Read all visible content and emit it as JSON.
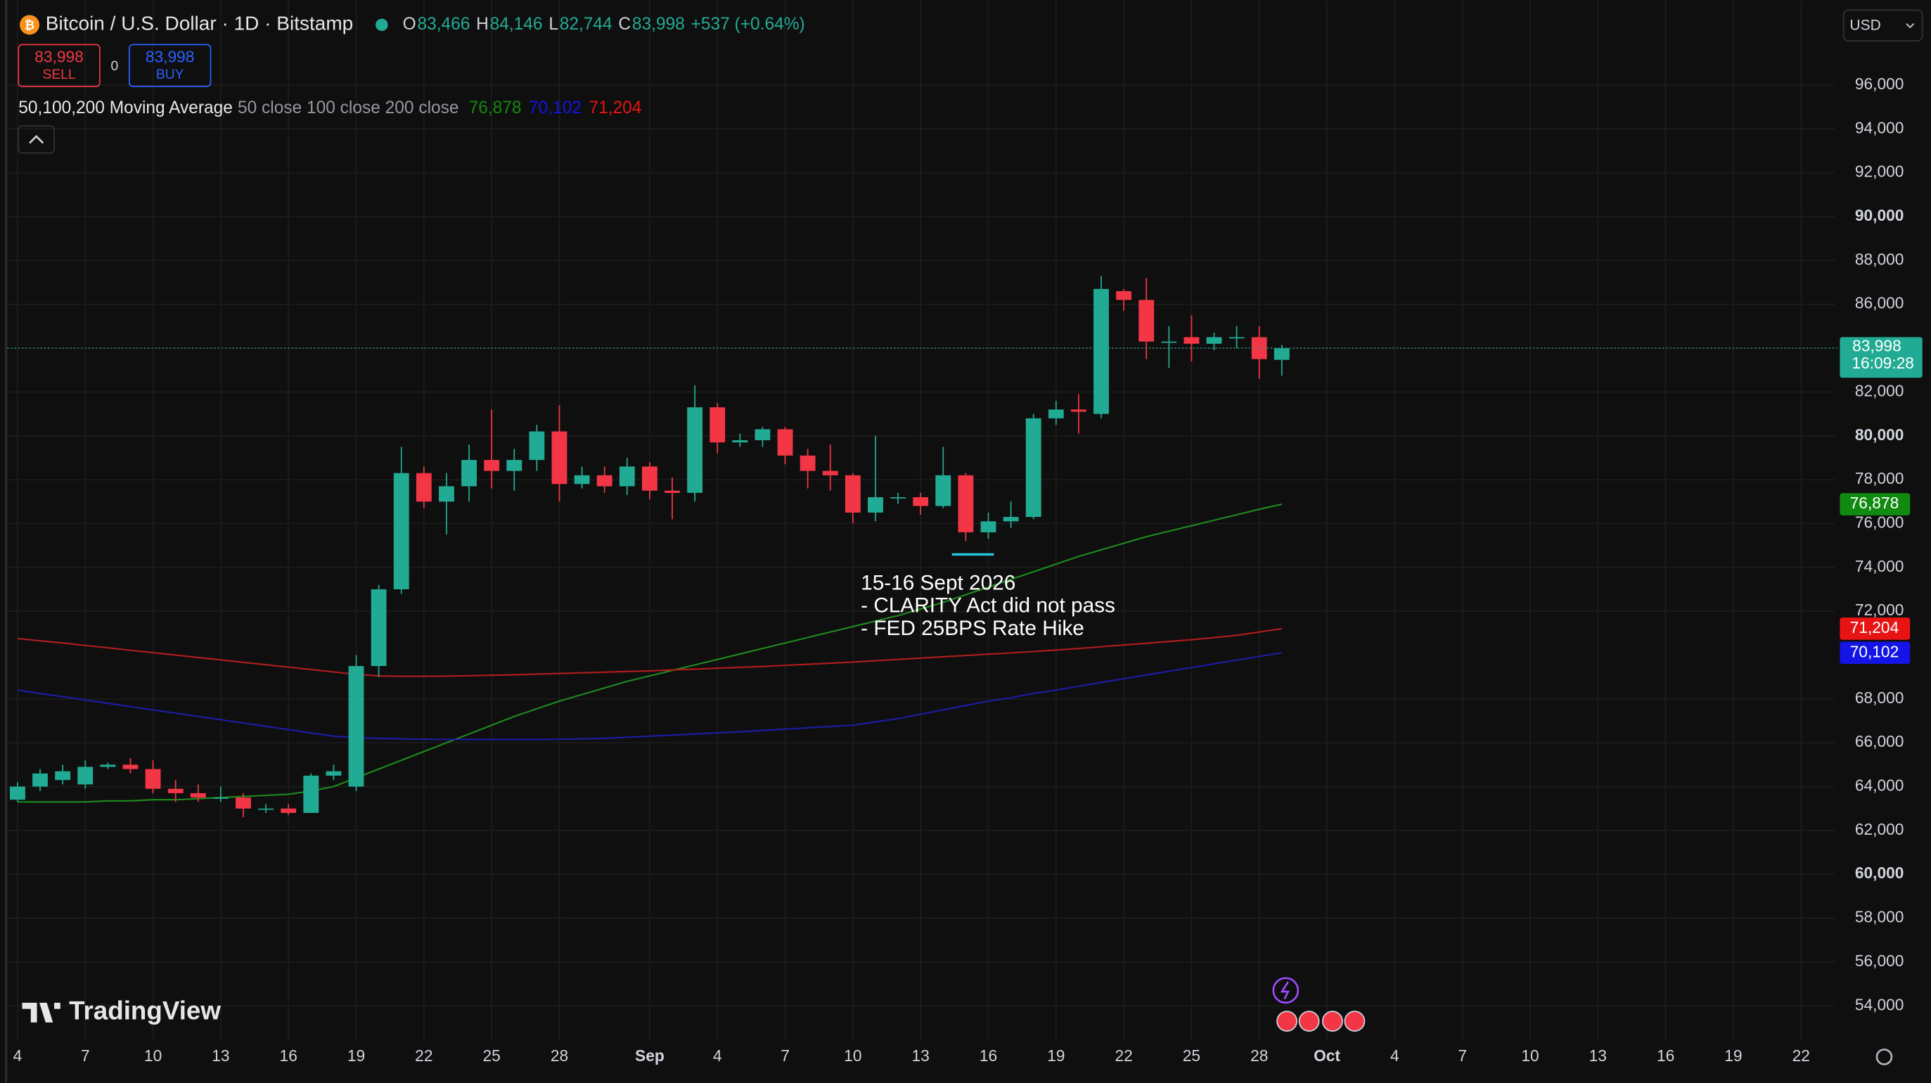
{
  "header": {
    "symbol": "Bitcoin / U.S. Dollar · 1D · Bitstamp",
    "ohlc": [
      {
        "key": "O",
        "value": "83,466"
      },
      {
        "key": "H",
        "value": "84,146"
      },
      {
        "key": "L",
        "value": "82,744"
      },
      {
        "key": "C",
        "value": "83,998"
      }
    ],
    "change": "+537 (+0.64%)"
  },
  "trade": {
    "sell_price": "83,998",
    "sell": "SELL",
    "spread": "0",
    "buy_price": "83,998",
    "buy": "BUY"
  },
  "indicator": {
    "name": "50,100,200 Moving Average",
    "params": "50 close 100 close 200 close",
    "values": [
      "76,878",
      "70,102",
      "71,204"
    ]
  },
  "currency": "USD",
  "countdown": "16:09:28",
  "logo": "TradingView",
  "chart_data": {
    "type": "candlestick",
    "up_color": "#22ab94",
    "down_color": "#f23645",
    "open": [
      63400,
      64000,
      64300,
      64100,
      64900,
      65000,
      64800,
      63900,
      63700,
      63500,
      63500,
      63000,
      63000,
      62800,
      64500,
      64000,
      69500,
      73000,
      78300,
      77000,
      77700,
      78900,
      78400,
      78900,
      80200,
      77800,
      78200,
      77700,
      78600,
      77500,
      77400,
      81300,
      79700,
      79800,
      80300,
      79100,
      78400,
      78200,
      76500,
      77200,
      77200,
      76800,
      78200,
      75600,
      76100,
      76300,
      80800,
      81200,
      81000,
      86600,
      86200,
      84300,
      84500,
      84200,
      84500,
      84500,
      83466
    ],
    "high": [
      64200,
      64800,
      65000,
      65200,
      65100,
      65300,
      65200,
      64300,
      64100,
      64000,
      63700,
      63200,
      63200,
      64600,
      65000,
      70000,
      73200,
      79500,
      78600,
      78300,
      79600,
      81200,
      79400,
      80500,
      81400,
      78600,
      78600,
      79000,
      78800,
      78100,
      82300,
      81500,
      80100,
      80400,
      80400,
      79400,
      79600,
      78300,
      80000,
      77400,
      77400,
      79500,
      78300,
      76500,
      77000,
      81000,
      81600,
      81900,
      87300,
      86700,
      87200,
      85000,
      85500,
      84700,
      85000,
      85000,
      84146
    ],
    "low": [
      63300,
      63800,
      64100,
      63900,
      64800,
      64600,
      63700,
      63300,
      63300,
      63300,
      62600,
      62800,
      62700,
      62800,
      64300,
      63800,
      69000,
      72800,
      76700,
      75500,
      77000,
      77600,
      77500,
      78400,
      77000,
      77600,
      77400,
      77300,
      77100,
      76200,
      77000,
      79200,
      79500,
      79500,
      78700,
      77600,
      77500,
      76000,
      76100,
      76900,
      76400,
      76700,
      75200,
      75300,
      75800,
      76200,
      80500,
      80100,
      80800,
      85700,
      83500,
      83100,
      83400,
      83900,
      84000,
      82600,
      82744
    ],
    "close": [
      64000,
      64600,
      64700,
      64900,
      65000,
      64800,
      63900,
      63700,
      63500,
      63500,
      63000,
      63000,
      62800,
      64500,
      64700,
      69500,
      73000,
      78300,
      77000,
      77700,
      78900,
      78400,
      78900,
      80200,
      77800,
      78200,
      77700,
      78600,
      77500,
      77400,
      81300,
      79700,
      79800,
      80300,
      79100,
      78400,
      78200,
      76500,
      77200,
      77200,
      76800,
      78200,
      75600,
      76100,
      76300,
      80800,
      81200,
      81100,
      86700,
      86200,
      84300,
      84300,
      84200,
      84500,
      84500,
      83500,
      83998
    ],
    "last_label": "83,998",
    "series": [
      {
        "color": "#1e8c1e",
        "tag_color": "#118a11",
        "values": [
          63300,
          63300,
          63300,
          63300,
          63350,
          63350,
          63400,
          63400,
          63450,
          63500,
          63550,
          63600,
          63650,
          63800,
          64000,
          64400,
          64800,
          65200,
          65600,
          66000,
          66400,
          66800,
          67200,
          67550,
          67900,
          68200,
          68500,
          68800,
          69050,
          69300,
          69550,
          69800,
          70050,
          70300,
          70550,
          70800,
          71050,
          71300,
          71550,
          71800,
          72100,
          72400,
          72750,
          73100,
          73450,
          73800,
          74150,
          74500,
          74800,
          75100,
          75400,
          75650,
          75900,
          76150,
          76400,
          76650,
          76878
        ]
      },
      {
        "color": "#1c1ca8",
        "tag_color": "#1414e6",
        "values": [
          68400,
          68250,
          68100,
          67950,
          67800,
          67650,
          67500,
          67350,
          67200,
          67050,
          66900,
          66750,
          66600,
          66450,
          66300,
          66230,
          66200,
          66180,
          66160,
          66150,
          66150,
          66150,
          66150,
          66150,
          66160,
          66180,
          66200,
          66250,
          66300,
          66350,
          66400,
          66450,
          66500,
          66560,
          66620,
          66680,
          66740,
          66800,
          66950,
          67100,
          67300,
          67500,
          67700,
          67900,
          68050,
          68250,
          68400,
          68580,
          68750,
          68920,
          69090,
          69260,
          69430,
          69600,
          69770,
          69940,
          70102
        ]
      },
      {
        "color": "#b31d1d",
        "tag_color": "#e81414",
        "values": [
          70750,
          70650,
          70550,
          70440,
          70330,
          70220,
          70110,
          70000,
          69890,
          69780,
          69670,
          69560,
          69450,
          69340,
          69230,
          69120,
          69050,
          69030,
          69030,
          69040,
          69060,
          69080,
          69100,
          69130,
          69160,
          69190,
          69220,
          69250,
          69280,
          69320,
          69360,
          69400,
          69440,
          69480,
          69530,
          69580,
          69630,
          69680,
          69740,
          69800,
          69860,
          69920,
          69980,
          70040,
          70100,
          70160,
          70230,
          70300,
          70380,
          70460,
          70540,
          70620,
          70700,
          70800,
          70900,
          71050,
          71204
        ]
      }
    ],
    "xlim": [
      -0.45,
      80.5
    ],
    "xticks": [
      {
        "value": 0,
        "label": "4"
      },
      {
        "value": 3,
        "label": "7"
      },
      {
        "value": 6,
        "label": "10"
      },
      {
        "value": 9,
        "label": "13"
      },
      {
        "value": 12,
        "label": "16"
      },
      {
        "value": 15,
        "label": "19"
      },
      {
        "value": 18,
        "label": "22"
      },
      {
        "value": 21,
        "label": "25"
      },
      {
        "value": 24,
        "label": "28"
      },
      {
        "value": 28,
        "label": "Sep"
      },
      {
        "value": 31,
        "label": "4"
      },
      {
        "value": 34,
        "label": "7"
      },
      {
        "value": 37,
        "label": "10"
      },
      {
        "value": 40,
        "label": "13"
      },
      {
        "value": 43,
        "label": "16"
      },
      {
        "value": 46,
        "label": "19"
      },
      {
        "value": 49,
        "label": "22"
      },
      {
        "value": 52,
        "label": "25"
      },
      {
        "value": 55,
        "label": "28"
      },
      {
        "value": 58,
        "label": "Oct"
      },
      {
        "value": 61,
        "label": "4"
      },
      {
        "value": 64,
        "label": "7"
      },
      {
        "value": 67,
        "label": "10"
      },
      {
        "value": 70,
        "label": "13"
      },
      {
        "value": 73,
        "label": "16"
      },
      {
        "value": 76,
        "label": "19"
      },
      {
        "value": 79,
        "label": "22"
      }
    ],
    "ylim": [
      52400,
      99870
    ],
    "yticks": [
      {
        "value": 54000,
        "label": "54,000"
      },
      {
        "value": 56000,
        "label": "56,000"
      },
      {
        "value": 58000,
        "label": "58,000"
      },
      {
        "value": 60000,
        "label": "60,000"
      },
      {
        "value": 62000,
        "label": "62,000"
      },
      {
        "value": 64000,
        "label": "64,000"
      },
      {
        "value": 66000,
        "label": "66,000"
      },
      {
        "value": 68000,
        "label": "68,000"
      },
      {
        "value": 72000,
        "label": "72,000"
      },
      {
        "value": 74000,
        "label": "74,000"
      },
      {
        "value": 76000,
        "label": "76,000"
      },
      {
        "value": 78000,
        "label": "78,000"
      },
      {
        "value": 80000,
        "label": "80,000"
      },
      {
        "value": 82000,
        "label": "82,000"
      },
      {
        "value": 84000,
        "label": "84,000"
      },
      {
        "value": 86000,
        "label": "86,000"
      },
      {
        "value": 88000,
        "label": "88,000"
      },
      {
        "value": 90000,
        "label": "90,000"
      },
      {
        "value": 92000,
        "label": "92,000"
      },
      {
        "value": 94000,
        "label": "94,000"
      },
      {
        "value": 96000,
        "label": "96,000"
      }
    ],
    "grid": true,
    "annotation": [
      "15-16 Sept 2026",
      "- CLARITY Act did not pass",
      "- FED 25BPS Rate Hike"
    ]
  }
}
